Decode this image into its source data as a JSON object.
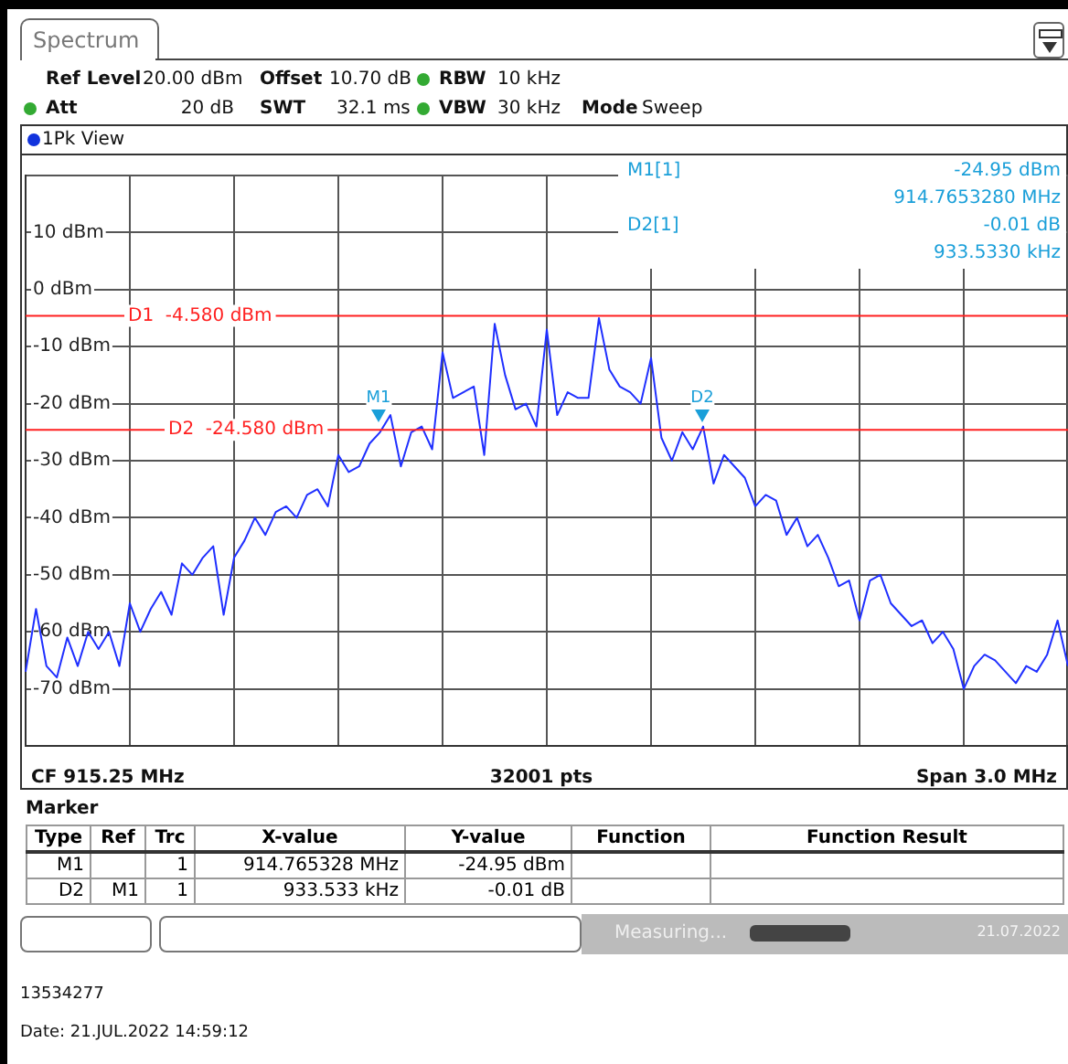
{
  "chart_data": {
    "type": "line",
    "marker": "none",
    "line_style": "solid",
    "grid": true,
    "tick_labels": "y",
    "categories": [
      null,
      null,
      null,
      null,
      null,
      null,
      null,
      null,
      null,
      null,
      null,
      null,
      null,
      null,
      null,
      null,
      null,
      null,
      null,
      null,
      null,
      null,
      null,
      null,
      null,
      null,
      null,
      null,
      null,
      null,
      null,
      null,
      null,
      null,
      null,
      null,
      null,
      null,
      null,
      null,
      null,
      null,
      null,
      null,
      null,
      null,
      null,
      null,
      null,
      null,
      null,
      null,
      null,
      null,
      null,
      null,
      null,
      null,
      null,
      null,
      null,
      null,
      null,
      null,
      null,
      null,
      null,
      null,
      null,
      null,
      null,
      null,
      null,
      null,
      null,
      null,
      null,
      null,
      null,
      null,
      null,
      null,
      null,
      null,
      null,
      null,
      null,
      null,
      null,
      null,
      null,
      null,
      null,
      null,
      null,
      null,
      null,
      null,
      null,
      null,
      null
    ],
    "ylim": [
      -80,
      20
    ],
    "yticks": [
      {
        "value": -80,
        "label": null
      },
      {
        "value": -70,
        "label": "-70 dBm"
      },
      {
        "value": -60,
        "label": "-60 dBm"
      },
      {
        "value": -50,
        "label": "-50 dBm"
      },
      {
        "value": -40,
        "label": "-40 dBm"
      },
      {
        "value": -30,
        "label": "-30 dBm"
      },
      {
        "value": -20,
        "label": "-20 dBm"
      },
      {
        "value": -10,
        "label": "-10 dBm"
      },
      {
        "value": 0,
        "label": "0 dBm"
      },
      {
        "value": 10,
        "label": "10 dBm"
      },
      {
        "value": 20,
        "label": null
      }
    ],
    "series": [
      {
        "color": "#1f2fff",
        "values": [
          -67,
          -56,
          -66,
          -68,
          -61,
          -66,
          -60,
          -63,
          -60,
          -66,
          -55,
          -60,
          -56,
          -53,
          -57,
          -48,
          -50,
          -47,
          -45,
          -57,
          -47,
          -44,
          -40,
          -43,
          -39,
          -38,
          -40,
          -36,
          -35,
          -38,
          -29,
          -32,
          -31,
          -27,
          -25,
          -22,
          -31,
          -25,
          -24,
          -28,
          -11,
          -19,
          -18,
          -17,
          -29,
          -6,
          -15,
          -21,
          -20,
          -24,
          -7,
          -22,
          -18,
          -19,
          -19,
          -5,
          -14,
          -17,
          -18,
          -20,
          -12,
          -26,
          -30,
          -25,
          -28,
          -24,
          -34,
          -29,
          -31,
          -33,
          -38,
          -36,
          -37,
          -43,
          -40,
          -45,
          -43,
          -47,
          -52,
          -51,
          -58,
          -51,
          -50,
          -55,
          -57,
          -59,
          -58,
          -62,
          -60,
          -63,
          -70,
          -66,
          -64,
          -65,
          -67,
          -69,
          -66,
          -67,
          -64,
          -58,
          -66
        ]
      }
    ],
    "ref_lines": [
      {
        "axis": "y",
        "value": -4.58,
        "label": "D1  -4.580 dBm",
        "color": "#ff2020"
      },
      {
        "axis": "y",
        "value": -24.58,
        "label": "D2  -24.580 dBm",
        "color": "#ff2020"
      }
    ],
    "annotations": [
      "Spectrum",
      "Ref Level",
      "20.00 dBm",
      "Offset",
      "10.70 dB",
      "RBW",
      "10 kHz",
      "Att",
      "20 dB",
      "SWT",
      "32.1 ms",
      "VBW",
      "30 kHz",
      "Mode",
      "Sweep",
      "1Pk View",
      "M1[1]",
      "-24.95 dBm",
      "914.7653280 MHz",
      "D2[1]",
      "-0.01 dB",
      "933.5330 kHz",
      "CF 915.25 MHz",
      "32001 pts",
      "Span 3.0 MHz",
      "Marker",
      "Type",
      "Ref",
      "Trc",
      "X-value",
      "Y-value",
      "Function",
      "Function Result",
      "M1",
      "1",
      "914.765328 MHz",
      "-24.95 dBm",
      "D2",
      "M1",
      "1",
      "933.533 kHz",
      "-0.01 dB",
      "Measuring...",
      "21.07.2022",
      "13534277",
      "Date: 21.JUL.2022  14:59:12",
      "M1",
      "D2"
    ]
  }
}
